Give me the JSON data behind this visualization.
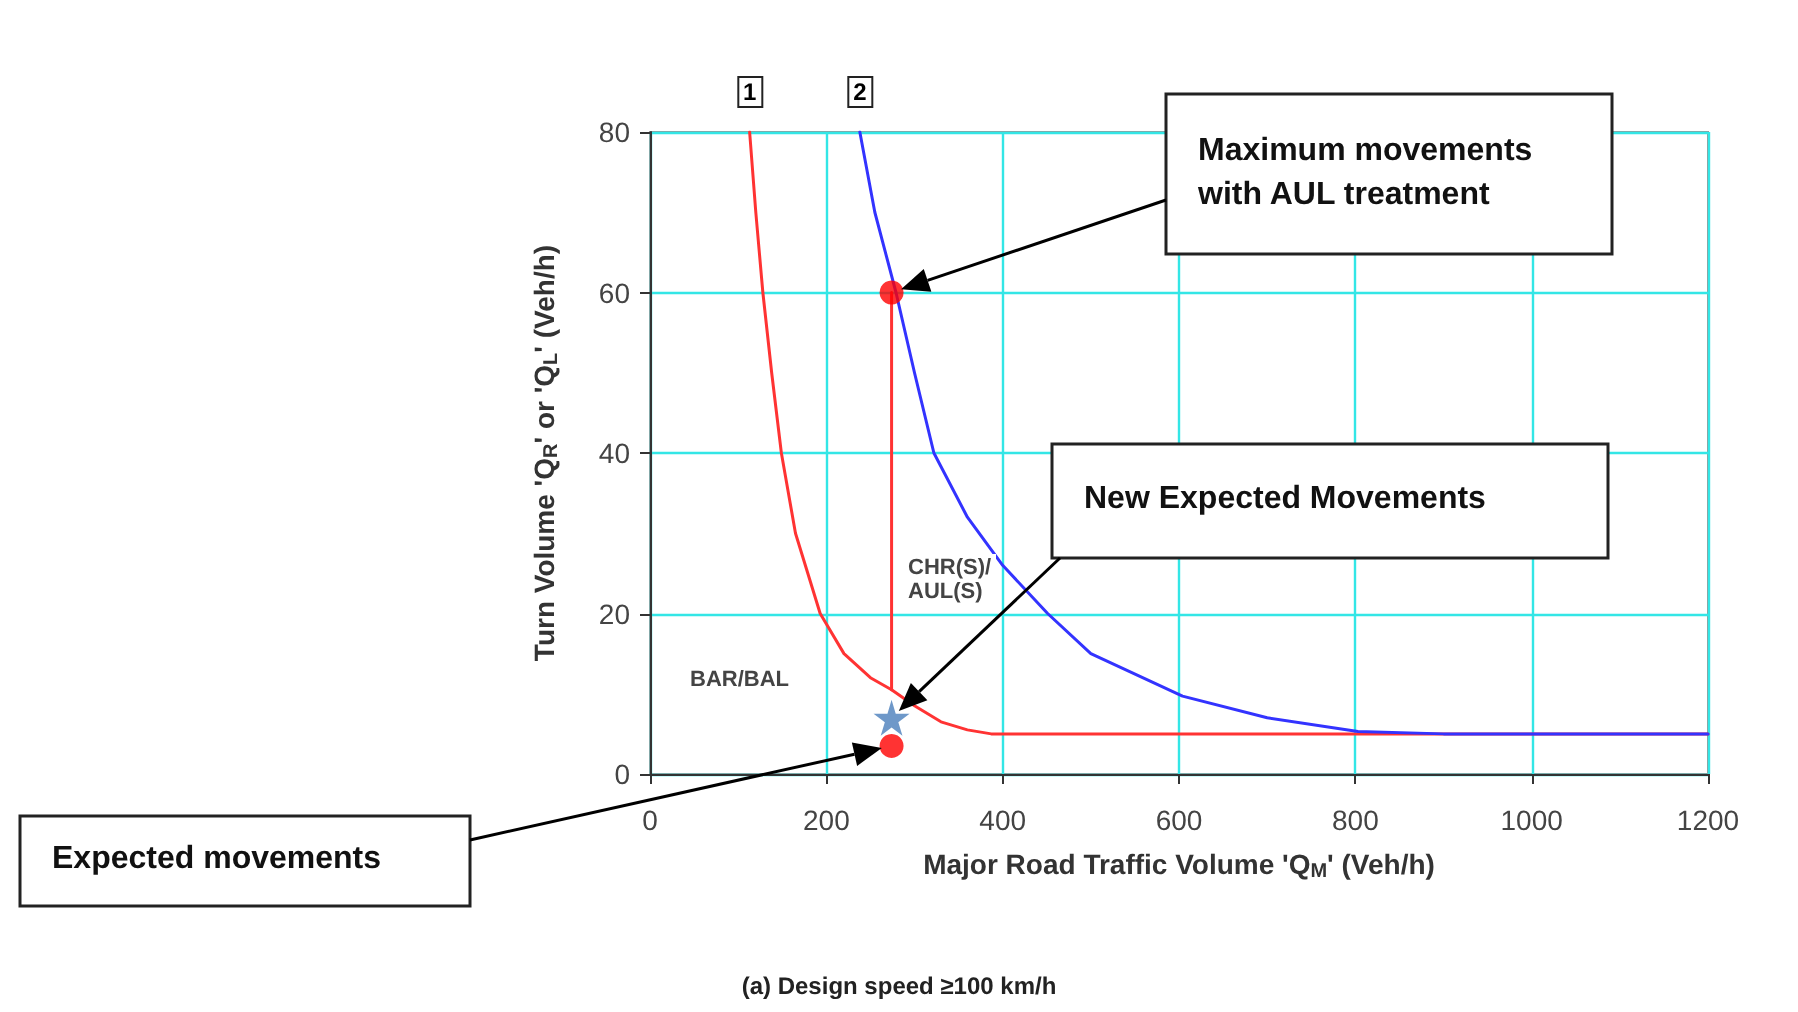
{
  "chart_data": {
    "type": "line",
    "title": "(a) Design speed ≥100 km/h",
    "xlabel": "Major Road Traffic Volume 'Q$_{M}$' (Veh/h)",
    "ylabel": "Turn Volume 'Q$_{R}$' or 'Q$_{L}$' (Veh/h)",
    "xlim": [
      0,
      1200
    ],
    "xticks": [
      0,
      200,
      400,
      600,
      800,
      1000,
      1200
    ],
    "ylim": [
      0,
      80
    ],
    "yticks": [
      0,
      20,
      40,
      60,
      80
    ],
    "grid": true,
    "marker": "none",
    "line_style": "solid",
    "series": [
      {
        "color": "#ff3333",
        "x": [
          113,
          120,
          128,
          138,
          149,
          165,
          193,
          220,
          250,
          274,
          300,
          330,
          360,
          387,
          400,
          600,
          800,
          1000,
          1200
        ],
        "values": [
          80,
          70,
          60,
          50,
          40,
          30,
          20,
          15,
          12,
          10.5,
          8.5,
          6.5,
          5.5,
          5,
          5,
          5,
          5,
          5,
          5
        ]
      },
      {
        "color": "#3333ff",
        "x": [
          238,
          255,
          279,
          300,
          322,
          360,
          400,
          451,
          500,
          604,
          700,
          803,
          900,
          1000,
          1200
        ],
        "values": [
          80,
          70,
          60,
          50,
          40,
          32,
          26,
          20,
          15,
          9.7,
          7,
          5.3,
          5,
          5,
          5
        ]
      },
      {
        "color": "#ff3333",
        "x": [
          274,
          274
        ],
        "values": [
          10.5,
          60
        ]
      },
      {
        "type": "scatter",
        "marker": "circle",
        "color": "#ff0000",
        "x": [
          274,
          274
        ],
        "values": [
          60,
          3.5
        ]
      },
      {
        "type": "scatter",
        "marker": "star",
        "color": "#4a7ebb",
        "x": [
          274
        ],
        "values": [
          7
        ]
      }
    ],
    "annotations": [
      {
        "text": "1",
        "x": 113,
        "y": 80
      },
      {
        "text": "2",
        "x": 238,
        "y": 80
      },
      "Maximum movements with AUL treatment",
      "New Expected Movements",
      "Expected movements",
      "BAR/BAL",
      "CHR(S)/\nAUL(S)"
    ]
  }
}
